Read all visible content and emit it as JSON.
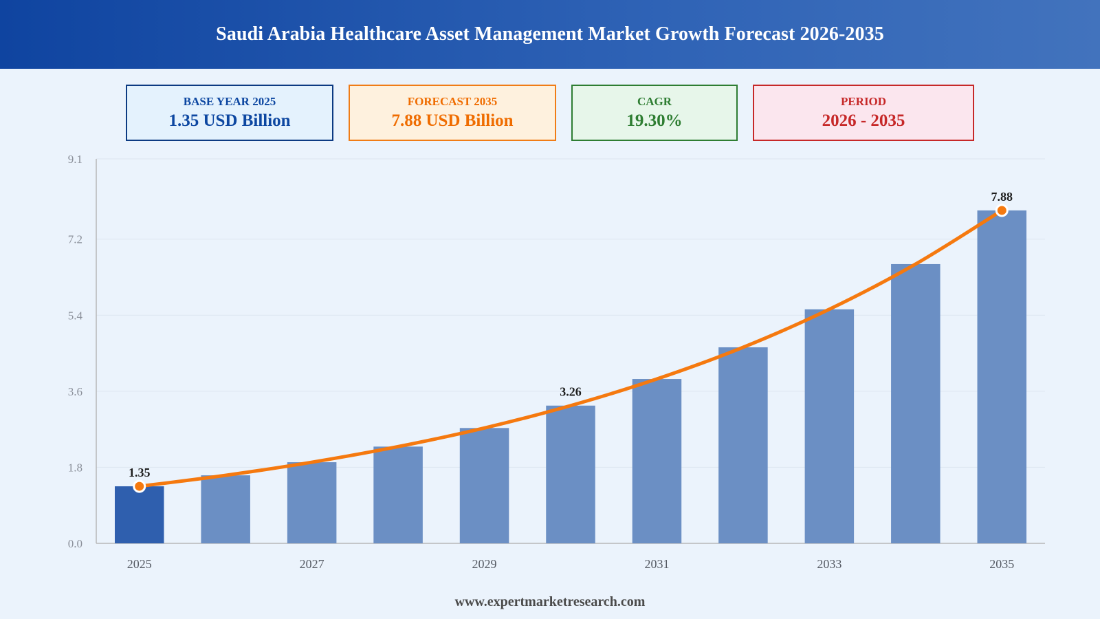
{
  "header": {
    "title": "Saudi Arabia Healthcare Asset Management Market Growth Forecast 2026-2035"
  },
  "cards": {
    "base": {
      "label": "BASE YEAR 2025",
      "value": "1.35 USD Billion"
    },
    "forecast": {
      "label": "FORECAST 2035",
      "value": "7.88 USD Billion"
    },
    "cagr": {
      "label": "CAGR",
      "value": "19.30%"
    },
    "period": {
      "label": "PERIOD",
      "value": "2026 - 2035"
    }
  },
  "footer": {
    "website": "www.expertmarketresearch.com"
  },
  "colors": {
    "bar_base": "#2f5fae",
    "bar": "#6b8fc4",
    "trend_line": "#f5790f",
    "grid": "#dde6f0",
    "axis": "#b8b8b8"
  },
  "chart_data": {
    "type": "bar",
    "title": "",
    "xlabel": "",
    "ylabel": "",
    "categories": [
      "2025",
      "2026",
      "2027",
      "2028",
      "2029",
      "2030",
      "2031",
      "2032",
      "2033",
      "2034",
      "2035"
    ],
    "x_tick_labels": [
      "2025",
      "2027",
      "2029",
      "2031",
      "2033",
      "2035"
    ],
    "values": [
      1.35,
      1.61,
      1.92,
      2.29,
      2.73,
      3.26,
      3.89,
      4.64,
      5.54,
      6.61,
      7.88
    ],
    "trend_line": {
      "type": "line",
      "values": [
        1.35,
        1.61,
        1.92,
        2.29,
        2.73,
        3.26,
        3.89,
        4.64,
        5.54,
        6.61,
        7.88
      ]
    },
    "data_labels": [
      {
        "category": "2025",
        "text": "1.35"
      },
      {
        "category": "2030",
        "text": "3.26"
      },
      {
        "category": "2035",
        "text": "7.88"
      }
    ],
    "ylim": [
      0,
      9.1
    ],
    "y_ticks": [
      "0.0",
      "1.8",
      "3.6",
      "5.4",
      "7.2",
      "9.1"
    ],
    "grid": true,
    "legend": "none"
  }
}
